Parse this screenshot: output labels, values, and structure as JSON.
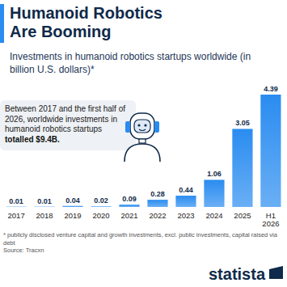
{
  "chart_data": {
    "type": "bar",
    "title": "Humanoid Robotics Are Booming",
    "subtitle": "Investments in humanoid robotics startups worldwide (in billion U.S. dollars)*",
    "annotation": [
      "Between 2017 and the first half of 2026, worldwide investments in humanoid robotics startups",
      "totalled $9.4B."
    ],
    "categories": [
      "2017",
      "2018",
      "2019",
      "2020",
      "2021",
      "2022",
      "2023",
      "2024",
      "2025",
      "H1 2026"
    ],
    "values": [
      0.01,
      0.01,
      0.04,
      0.02,
      0.09,
      0.28,
      0.44,
      1.06,
      3.05,
      4.39
    ],
    "color": "#2a8cf0",
    "ylim": [
      0,
      4.39
    ],
    "grid": false,
    "data_labels": true,
    "tick_labels": "x",
    "footnote": "* publicly disclosed venture capital and growth investments, excl. public investments, capital raised via debt",
    "source": "Source: Tracxn",
    "logo": "statista"
  }
}
